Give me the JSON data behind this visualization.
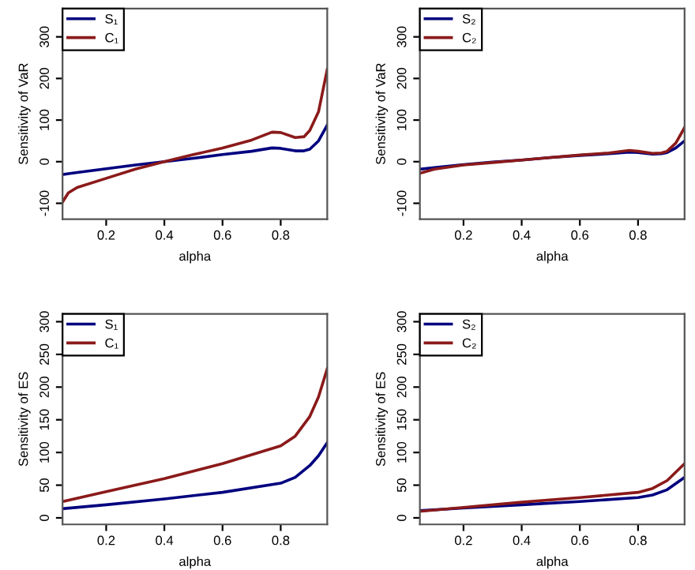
{
  "chart_data": [
    {
      "type": "line",
      "xlabel": "alpha",
      "ylabel": "Sensitivity of VaR",
      "xlim": [
        0.05,
        0.96
      ],
      "ylim": [
        -138,
        368
      ],
      "xticks": [
        0.2,
        0.4,
        0.6,
        0.8
      ],
      "yticks": [
        -100,
        0,
        100,
        200,
        300
      ],
      "legend": "top left",
      "grid": false,
      "x": [
        0.05,
        0.07,
        0.1,
        0.2,
        0.3,
        0.4,
        0.5,
        0.6,
        0.7,
        0.77,
        0.8,
        0.85,
        0.88,
        0.9,
        0.93,
        0.96
      ],
      "series": [
        {
          "name": "S₁",
          "color": "#00007f",
          "values": [
            -31,
            -29,
            -26,
            -17,
            -8,
            0,
            8,
            17,
            25,
            33,
            32,
            26,
            26,
            30,
            50,
            88
          ]
        },
        {
          "name": "C₁",
          "color": "#8b1a1a",
          "values": [
            -97,
            -75,
            -62,
            -40,
            -18,
            0,
            17,
            33,
            52,
            71,
            70,
            58,
            60,
            75,
            120,
            222
          ]
        }
      ]
    },
    {
      "type": "line",
      "xlabel": "alpha",
      "ylabel": "Sensitivity of VaR",
      "xlim": [
        0.05,
        0.96
      ],
      "ylim": [
        -138,
        368
      ],
      "xticks": [
        0.2,
        0.4,
        0.6,
        0.8
      ],
      "yticks": [
        -100,
        0,
        100,
        200,
        300
      ],
      "legend": "top left",
      "grid": false,
      "x": [
        0.05,
        0.1,
        0.2,
        0.3,
        0.4,
        0.5,
        0.6,
        0.7,
        0.77,
        0.8,
        0.85,
        0.88,
        0.9,
        0.93,
        0.96
      ],
      "series": [
        {
          "name": "S₂",
          "color": "#00007f",
          "values": [
            -18,
            -14,
            -7,
            -1,
            4,
            10,
            15,
            19,
            23,
            22,
            18,
            19,
            22,
            33,
            50
          ]
        },
        {
          "name": "C₂",
          "color": "#8b1a1a",
          "values": [
            -28,
            -18,
            -8,
            -2,
            4,
            10,
            16,
            21,
            27,
            25,
            20,
            21,
            25,
            45,
            82
          ]
        }
      ]
    },
    {
      "type": "line",
      "xlabel": "alpha",
      "ylabel": "Sensitivity of ES",
      "xlim": [
        0.05,
        0.96
      ],
      "ylim": [
        -10,
        312
      ],
      "xticks": [
        0.2,
        0.4,
        0.6,
        0.8
      ],
      "yticks": [
        0,
        50,
        100,
        150,
        200,
        250,
        300
      ],
      "legend": "top left",
      "grid": false,
      "x": [
        0.05,
        0.2,
        0.4,
        0.6,
        0.8,
        0.85,
        0.9,
        0.93,
        0.96
      ],
      "series": [
        {
          "name": "S₁",
          "color": "#00007f",
          "values": [
            14,
            20,
            29,
            39,
            53,
            62,
            80,
            95,
            115
          ]
        },
        {
          "name": "C₁",
          "color": "#8b1a1a",
          "values": [
            25,
            40,
            60,
            83,
            110,
            125,
            155,
            185,
            228
          ]
        }
      ]
    },
    {
      "type": "line",
      "xlabel": "alpha",
      "ylabel": "Sensitivity of ES",
      "xlim": [
        0.05,
        0.96
      ],
      "ylim": [
        -10,
        312
      ],
      "xticks": [
        0.2,
        0.4,
        0.6,
        0.8
      ],
      "yticks": [
        0,
        50,
        100,
        150,
        200,
        250,
        300
      ],
      "legend": "top left",
      "grid": false,
      "x": [
        0.05,
        0.2,
        0.4,
        0.6,
        0.8,
        0.85,
        0.9,
        0.96
      ],
      "series": [
        {
          "name": "S₂",
          "color": "#00007f",
          "values": [
            11,
            15,
            20,
            25,
            31,
            35,
            43,
            62
          ]
        },
        {
          "name": "C₂",
          "color": "#8b1a1a",
          "values": [
            10,
            16,
            24,
            31,
            39,
            45,
            57,
            83
          ]
        }
      ]
    }
  ]
}
